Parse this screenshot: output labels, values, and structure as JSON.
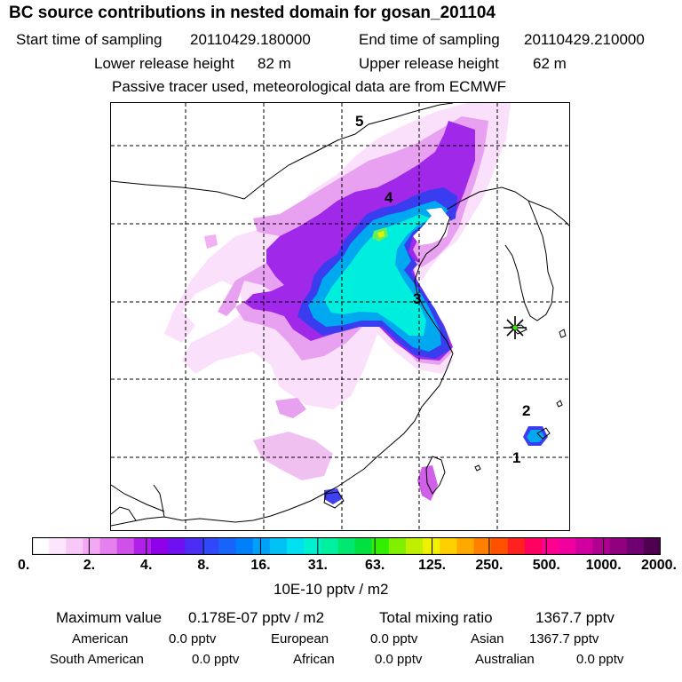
{
  "title": "BC  source contributions in nested domain for gosan_201104",
  "header": {
    "start_label": "Start time of sampling",
    "start_value": "20110429.180000",
    "end_label": "End time of sampling",
    "end_value": "20110429.210000",
    "lower_label": "Lower release height",
    "lower_value": "82 m",
    "upper_label": "Upper release height",
    "upper_value": "62 m",
    "note": "Passive tracer used, meteorological data are from ECMWF"
  },
  "chart_data": {
    "type": "heatmap",
    "title": "BC  source contributions in nested domain for gosan_201104",
    "units": "10E-10 pptv / m2",
    "colorbar_ticks": [
      "0.",
      "2.",
      "4.",
      "8.",
      "16.",
      "31.",
      "63.",
      "125.",
      "250.",
      "500.",
      "1000.",
      "2000."
    ],
    "colorbar_colors": [
      "#ffffff",
      "#fde6fd",
      "#f8c8f8",
      "#f2a8f2",
      "#e580ee",
      "#d050ea",
      "#b020e8",
      "#8f00e8",
      "#6e10f0",
      "#4d2cf4",
      "#3048f8",
      "#1864f8",
      "#0080f8",
      "#00a0f8",
      "#00c0f4",
      "#00e0f0",
      "#00f0d0",
      "#00f0a0",
      "#00e870",
      "#00e040",
      "#30f000",
      "#80f000",
      "#c0f000",
      "#f0f000",
      "#ffd000",
      "#ffa800",
      "#ff8000",
      "#ff5000",
      "#ff2020",
      "#ff0060",
      "#ff0090",
      "#f000a0",
      "#d000a0",
      "#b00090",
      "#900080",
      "#700070",
      "#500050"
    ],
    "region_labels": [
      "1",
      "2",
      "3",
      "4",
      "5"
    ],
    "receptor": "gosan",
    "contour_levels": [
      {
        "level": "0.",
        "color": "#fde6fd"
      },
      {
        "level": "2.",
        "color": "#e8a0f0"
      },
      {
        "level": "4.",
        "color": "#a020e8"
      },
      {
        "level": "8.",
        "color": "#3040f0"
      },
      {
        "level": "16.",
        "color": "#00a8f0"
      },
      {
        "level": "31.",
        "color": "#00f0e0"
      },
      {
        "level": "63.",
        "color": "#60f060"
      },
      {
        "level": "125.",
        "color": "#e0f000"
      }
    ]
  },
  "footer": {
    "max_label": "Maximum value",
    "max_value": "0.178E-07 pptv / m2",
    "total_label": "Total mixing ratio",
    "total_value": "1367.7 pptv",
    "sources": [
      {
        "name": "American",
        "value": "0.0 pptv"
      },
      {
        "name": "European",
        "value": "0.0 pptv"
      },
      {
        "name": "Asian",
        "value": "1367.7 pptv"
      },
      {
        "name": "South American",
        "value": "0.0 pptv"
      },
      {
        "name": "African",
        "value": "0.0 pptv"
      },
      {
        "name": "Australian",
        "value": "0.0 pptv"
      }
    ]
  }
}
